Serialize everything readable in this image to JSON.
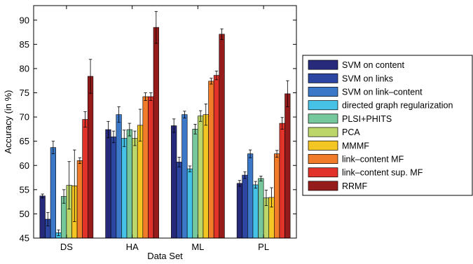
{
  "chart_data": {
    "type": "bar",
    "xlabel": "Data Set",
    "ylabel": "Accuracy (in %)",
    "ylim": [
      45,
      93
    ],
    "yticks": [
      45,
      50,
      55,
      60,
      65,
      70,
      75,
      80,
      85,
      90
    ],
    "categories": [
      "DS",
      "HA",
      "ML",
      "PL"
    ],
    "legend_position": "right",
    "error_bars": true,
    "series": [
      {
        "name": "SVM on content",
        "color": "#272a7a",
        "values": [
          53.7,
          67.4,
          68.2,
          56.3
        ],
        "errors": [
          0.4,
          1.7,
          1.4,
          0.6
        ]
      },
      {
        "name": "SVM on links",
        "color": "#2c46a2",
        "values": [
          48.9,
          65.9,
          60.7,
          58.0
        ],
        "errors": [
          1.4,
          1.2,
          1.0,
          0.7
        ]
      },
      {
        "name": "SVM on link–content",
        "color": "#3c78c8",
        "values": [
          63.7,
          70.5,
          70.5,
          62.4
        ],
        "errors": [
          1.3,
          1.6,
          0.7,
          0.8
        ]
      },
      {
        "name": "directed graph regularization",
        "color": "#46c2e6",
        "values": [
          46.1,
          65.6,
          59.3,
          56.0
        ],
        "errors": [
          0.6,
          1.7,
          0.6,
          0.7
        ]
      },
      {
        "name": "PLSI+PHITS",
        "color": "#76c89c",
        "values": [
          53.6,
          67.4,
          67.5,
          57.3
        ],
        "errors": [
          1.4,
          1.3,
          1.0,
          0.5
        ]
      },
      {
        "name": "PCA",
        "color": "#bcd66a",
        "values": [
          55.9,
          65.6,
          70.2,
          53.3
        ],
        "errors": [
          4.9,
          1.5,
          1.1,
          1.6
        ]
      },
      {
        "name": "MMMF",
        "color": "#f4c623",
        "values": [
          55.8,
          68.3,
          70.5,
          53.4
        ],
        "errors": [
          7.4,
          3.3,
          2.2,
          2.0
        ]
      },
      {
        "name": "link–content MF",
        "color": "#f07c2a",
        "values": [
          61.0,
          74.2,
          77.4,
          62.4
        ],
        "errors": [
          0.6,
          0.8,
          0.6,
          0.7
        ]
      },
      {
        "name": "link–content sup. MF",
        "color": "#e2332a",
        "values": [
          69.5,
          74.2,
          78.6,
          68.7
        ],
        "errors": [
          1.6,
          0.8,
          0.9,
          1.2
        ]
      },
      {
        "name": "RRMF",
        "color": "#961c1c",
        "values": [
          78.4,
          88.5,
          87.1,
          74.8
        ],
        "errors": [
          3.5,
          3.3,
          1.1,
          2.7
        ]
      }
    ]
  }
}
